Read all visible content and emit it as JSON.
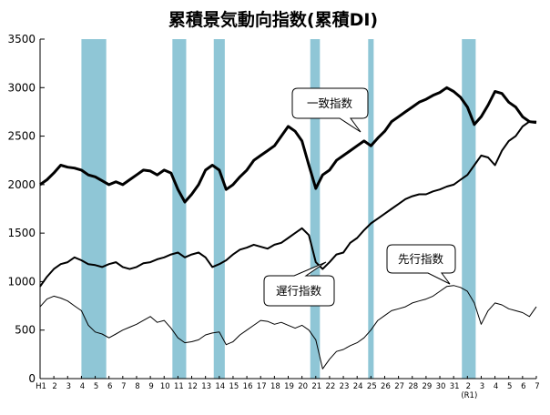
{
  "chart_data": {
    "type": "line",
    "title": "累積景気動向指数(累積DI)",
    "ylim": [
      0,
      3500
    ],
    "yticks": [
      "0",
      "500",
      "1000",
      "1500",
      "2000",
      "2500",
      "3000",
      "3500"
    ],
    "x_tick_labels": [
      "H1",
      "2",
      "3",
      "4",
      "5",
      "6",
      "7",
      "8",
      "9",
      "10",
      "11",
      "12",
      "13",
      "14",
      "15",
      "16",
      "17",
      "18",
      "19",
      "20",
      "21",
      "22",
      "23",
      "24",
      "25",
      "26",
      "27",
      "28",
      "29",
      "30",
      "31",
      "2",
      "3",
      "4",
      "5",
      "6",
      "7"
    ],
    "x_sub_label": "(R1)",
    "grid": false,
    "shaded_color": "#8fc6d6",
    "recession_bands": [
      [
        3.0,
        4.8
      ],
      [
        9.6,
        10.6
      ],
      [
        12.6,
        13.4
      ],
      [
        19.6,
        20.3
      ],
      [
        23.8,
        24.2
      ],
      [
        30.6,
        31.6
      ]
    ],
    "series": [
      {
        "name": "一致指数",
        "line_width": "thick",
        "x": [
          0,
          0.5,
          1,
          1.5,
          2,
          2.5,
          3,
          3.5,
          4,
          4.5,
          5,
          5.5,
          6,
          6.5,
          7,
          7.5,
          8,
          8.5,
          9,
          9.5,
          10,
          10.5,
          11,
          11.5,
          12,
          12.5,
          13,
          13.5,
          14,
          14.5,
          15,
          15.5,
          16,
          16.5,
          17,
          17.5,
          18,
          18.5,
          19,
          19.5,
          20,
          20.5,
          21,
          21.5,
          22,
          22.5,
          23,
          23.5,
          24,
          24.5,
          25,
          25.5,
          26,
          26.5,
          27,
          27.5,
          28,
          28.5,
          29,
          29.5,
          30,
          30.5,
          31,
          31.5,
          32,
          32.5,
          33,
          33.5,
          34,
          34.5,
          35,
          35.5,
          36
        ],
        "values": [
          2000,
          2050,
          2120,
          2200,
          2180,
          2170,
          2150,
          2100,
          2080,
          2040,
          2000,
          2030,
          2000,
          2050,
          2100,
          2150,
          2140,
          2100,
          2150,
          2120,
          1950,
          1820,
          1900,
          2000,
          2150,
          2200,
          2150,
          1950,
          2000,
          2080,
          2150,
          2250,
          2300,
          2350,
          2400,
          2500,
          2600,
          2550,
          2450,
          2200,
          1960,
          2100,
          2150,
          2250,
          2300,
          2350,
          2400,
          2450,
          2400,
          2480,
          2550,
          2650,
          2700,
          2750,
          2800,
          2850,
          2880,
          2920,
          2950,
          3000,
          2960,
          2900,
          2800,
          2620,
          2700,
          2820,
          2960,
          2940,
          2850,
          2800,
          2700,
          2650,
          2640
        ]
      },
      {
        "name": "遅行指数",
        "line_width": "medium",
        "x": [
          0,
          0.5,
          1,
          1.5,
          2,
          2.5,
          3,
          3.5,
          4,
          4.5,
          5,
          5.5,
          6,
          6.5,
          7,
          7.5,
          8,
          8.5,
          9,
          9.5,
          10,
          10.5,
          11,
          11.5,
          12,
          12.5,
          13,
          13.5,
          14,
          14.5,
          15,
          15.5,
          16,
          16.5,
          17,
          17.5,
          18,
          18.5,
          19,
          19.5,
          20,
          20.5,
          21,
          21.5,
          22,
          22.5,
          23,
          23.5,
          24,
          24.5,
          25,
          25.5,
          26,
          26.5,
          27,
          27.5,
          28,
          28.5,
          29,
          29.5,
          30,
          30.5,
          31,
          31.5,
          32,
          32.5,
          33,
          33.5,
          34,
          34.5,
          35,
          35.5,
          36
        ],
        "values": [
          950,
          1050,
          1130,
          1180,
          1200,
          1250,
          1220,
          1180,
          1170,
          1150,
          1180,
          1200,
          1150,
          1130,
          1150,
          1190,
          1200,
          1230,
          1250,
          1280,
          1300,
          1250,
          1280,
          1300,
          1250,
          1150,
          1180,
          1220,
          1280,
          1330,
          1350,
          1380,
          1360,
          1340,
          1380,
          1400,
          1450,
          1500,
          1550,
          1480,
          1200,
          1130,
          1200,
          1280,
          1300,
          1400,
          1450,
          1530,
          1600,
          1650,
          1700,
          1750,
          1800,
          1850,
          1880,
          1900,
          1900,
          1930,
          1950,
          1980,
          2000,
          2050,
          2100,
          2200,
          2300,
          2280,
          2200,
          2350,
          2450,
          2500,
          2600,
          2650,
          2650
        ]
      },
      {
        "name": "先行指数",
        "line_width": "thin",
        "x": [
          0,
          0.5,
          1,
          1.5,
          2,
          2.5,
          3,
          3.5,
          4,
          4.5,
          5,
          5.5,
          6,
          6.5,
          7,
          7.5,
          8,
          8.5,
          9,
          9.5,
          10,
          10.5,
          11,
          11.5,
          12,
          12.5,
          13,
          13.5,
          14,
          14.5,
          15,
          15.5,
          16,
          16.5,
          17,
          17.5,
          18,
          18.5,
          19,
          19.5,
          20,
          20.5,
          21,
          21.5,
          22,
          22.5,
          23,
          23.5,
          24,
          24.5,
          25,
          25.5,
          26,
          26.5,
          27,
          27.5,
          28,
          28.5,
          29,
          29.5,
          30,
          30.5,
          31,
          31.5,
          32,
          32.5,
          33,
          33.5,
          34,
          34.5,
          35,
          35.5,
          36
        ],
        "values": [
          740,
          820,
          850,
          830,
          800,
          750,
          700,
          550,
          480,
          460,
          420,
          460,
          500,
          530,
          560,
          600,
          640,
          580,
          600,
          520,
          420,
          370,
          380,
          400,
          450,
          470,
          480,
          350,
          380,
          450,
          500,
          550,
          600,
          590,
          560,
          580,
          550,
          520,
          550,
          500,
          400,
          100,
          200,
          280,
          300,
          340,
          370,
          420,
          500,
          600,
          650,
          700,
          720,
          740,
          780,
          800,
          820,
          850,
          900,
          950,
          960,
          940,
          900,
          780,
          560,
          700,
          780,
          760,
          720,
          700,
          680,
          640,
          740
        ]
      }
    ],
    "callouts": [
      "一致指数",
      "遅行指数",
      "先行指数"
    ]
  }
}
